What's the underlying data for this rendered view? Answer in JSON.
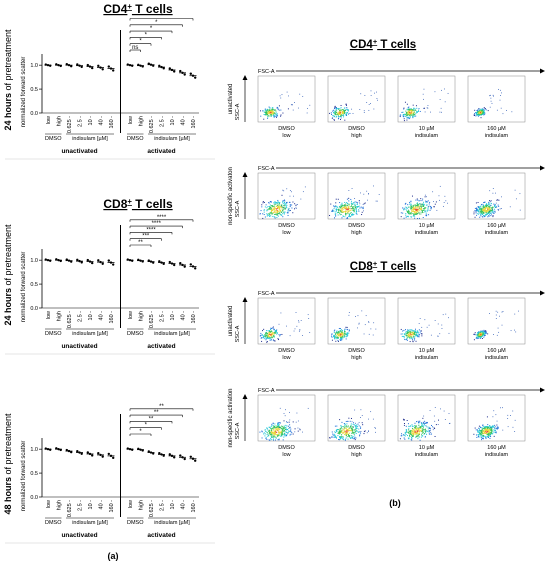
{
  "panel_a": {
    "label": "(a)",
    "charts": [
      {
        "title_base": "CD4",
        "title_sup": "+",
        "title_rest": " T cells",
        "ylabel_bold": "24 hours",
        "ylabel_rest": " of pretreatment",
        "yaxis_label": "normalized forward scatter",
        "yticks": [
          "0.0",
          "0.5",
          "1.0"
        ],
        "ylim": [
          0,
          1.15
        ],
        "tick_labels": [
          "low",
          "high",
          "0.625",
          "2.5",
          "10",
          "40",
          "160"
        ],
        "dmso_label": "DMSO",
        "indisulam_label": "indisulam [µM]",
        "group_labels": [
          "unactivated",
          "activated"
        ],
        "groups": [
          {
            "name": "unactivated",
            "values": [
              1.0,
              1.0,
              1.0,
              0.99,
              0.97,
              0.95,
              0.93
            ]
          },
          {
            "name": "activated",
            "values": [
              1.0,
              0.99,
              1.01,
              0.96,
              0.9,
              0.84,
              0.78
            ]
          }
        ],
        "significance": [
          "ns",
          "*",
          "*",
          "*",
          "*",
          "*"
        ]
      },
      {
        "title_base": "CD8",
        "title_sup": "+",
        "title_rest": " T cells",
        "ylabel_bold": "24 hours",
        "ylabel_rest": " of pretreatment",
        "yaxis_label": "normalized forward scatter",
        "yticks": [
          "0.0",
          "0.5",
          "1.0"
        ],
        "ylim": [
          0,
          1.15
        ],
        "tick_labels": [
          "low",
          "high",
          "0.625",
          "2.5",
          "10",
          "40",
          "160"
        ],
        "dmso_label": "DMSO",
        "indisulam_label": "indisulam [µM]",
        "group_labels": [
          "unactivated",
          "activated"
        ],
        "groups": [
          {
            "name": "unactivated",
            "values": [
              1.0,
              1.0,
              0.99,
              0.98,
              0.97,
              0.96,
              0.95
            ]
          },
          {
            "name": "activated",
            "values": [
              1.0,
              0.99,
              0.97,
              0.95,
              0.93,
              0.9,
              0.87
            ]
          }
        ],
        "significance": [
          "**",
          "***",
          "****",
          "****",
          "****"
        ]
      },
      {
        "title_base": "",
        "title_sup": "",
        "title_rest": "",
        "ylabel_bold": "48 hours",
        "ylabel_rest": " of pretreatment",
        "yaxis_label": "normalized forward scatter",
        "yticks": [
          "0.0",
          "0.5",
          "1.0"
        ],
        "ylim": [
          0,
          1.15
        ],
        "tick_labels": [
          "low",
          "high",
          "0.625",
          "2.5",
          "10",
          "40",
          "160"
        ],
        "dmso_label": "DMSO",
        "indisulam_label": "indisulam [µM]",
        "group_labels": [
          "unactivated",
          "activated"
        ],
        "groups": [
          {
            "name": "unactivated",
            "values": [
              1.0,
              1.0,
              0.96,
              0.93,
              0.9,
              0.88,
              0.86
            ]
          },
          {
            "name": "activated",
            "values": [
              1.0,
              0.99,
              0.93,
              0.89,
              0.86,
              0.83,
              0.8
            ]
          }
        ],
        "significance": [
          "*",
          "*",
          "**",
          "**",
          "**"
        ]
      }
    ]
  },
  "panel_b": {
    "label": "(b)",
    "axis_x": "FSC-A",
    "axis_y": "SSC-A",
    "sections": [
      {
        "title_base": "CD4",
        "title_sup": "+",
        "title_rest": " T cells",
        "rows": [
          {
            "label": "unactivated"
          },
          {
            "label": "non-specific activaton"
          }
        ]
      },
      {
        "title_base": "CD8",
        "title_sup": "+",
        "title_rest": " T cells",
        "rows": [
          {
            "label": "unactivated"
          },
          {
            "label": "non-specific activation"
          }
        ]
      }
    ],
    "columns": [
      {
        "line1": "DMSO",
        "line2": "low"
      },
      {
        "line1": "DMSO",
        "line2": "high"
      },
      {
        "line1": "10 µM",
        "line2": "indisulam"
      },
      {
        "line1": "160 µM",
        "line2": "indisulam"
      }
    ],
    "density_colors": [
      "#1e2c8c",
      "#1f6fd8",
      "#22c6d6",
      "#35c35a",
      "#e8d63a",
      "#e84a2a"
    ]
  }
}
